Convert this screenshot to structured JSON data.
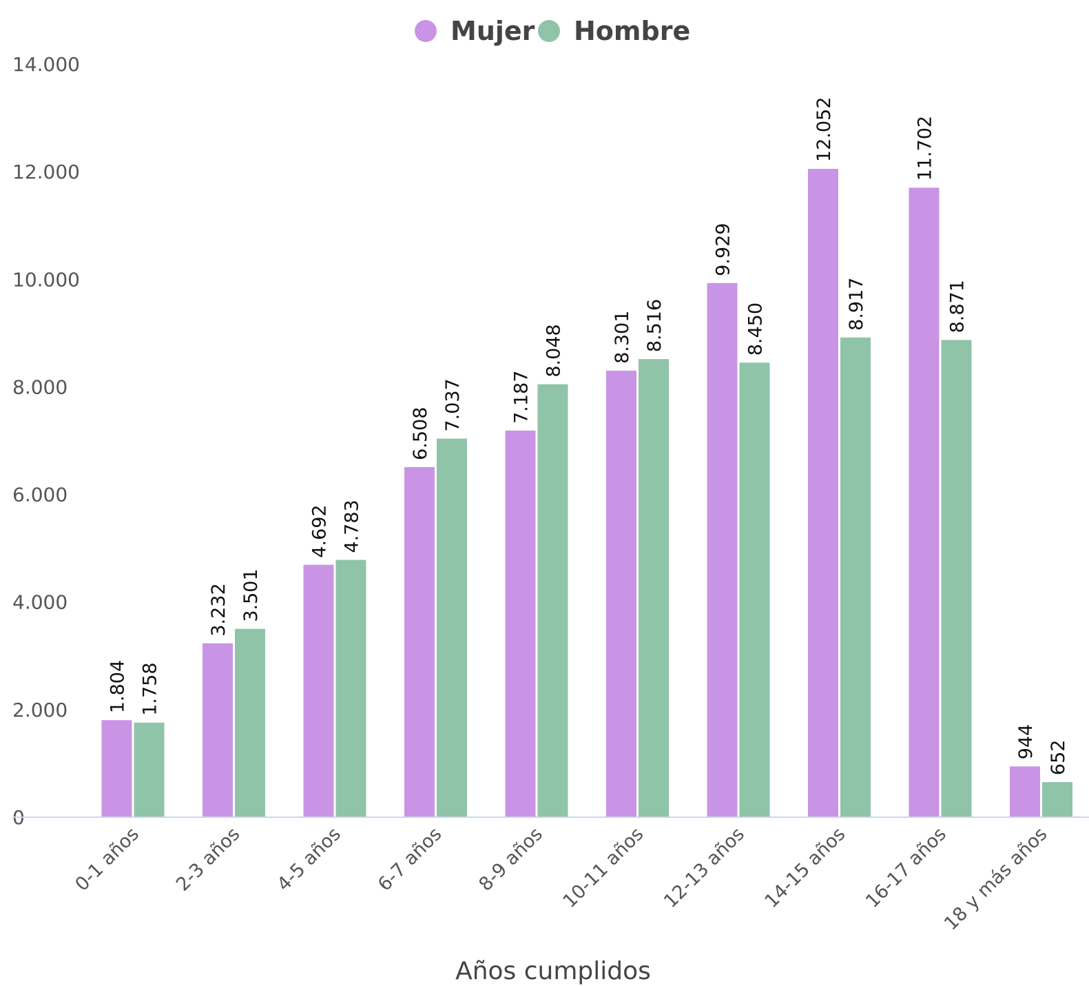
{
  "chart_data": {
    "type": "bar",
    "title": "",
    "xlabel": "Años cumplidos",
    "ylabel": "",
    "ylim": [
      0,
      14000
    ],
    "yticks": [
      0,
      2000,
      4000,
      6000,
      8000,
      10000,
      12000,
      14000
    ],
    "ytick_labels": [
      "0",
      "2.000",
      "4.000",
      "6.000",
      "8.000",
      "10.000",
      "12.000",
      "14.000"
    ],
    "grid": false,
    "legend_position": "top-center",
    "categories": [
      "0-1 años",
      "2-3 años",
      "4-5 años",
      "6-7 años",
      "8-9 años",
      "10-11 años",
      "12-13 años",
      "14-15 años",
      "16-17 años",
      "18 y más años"
    ],
    "series": [
      {
        "name": "Mujer",
        "color": "#c994e6",
        "values": [
          1804,
          3232,
          4692,
          6508,
          7187,
          8301,
          9929,
          12052,
          11702,
          944
        ],
        "labels": [
          "1.804",
          "3.232",
          "4.692",
          "6.508",
          "7.187",
          "8.301",
          "9.929",
          "12.052",
          "11.702",
          "944"
        ]
      },
      {
        "name": "Hombre",
        "color": "#8fc4a9",
        "values": [
          1758,
          3501,
          4783,
          7037,
          8048,
          8516,
          8450,
          8917,
          8871,
          652
        ],
        "labels": [
          "1.758",
          "3.501",
          "4.783",
          "7.037",
          "8.048",
          "8.516",
          "8.450",
          "8.917",
          "8.871",
          "652"
        ]
      }
    ]
  }
}
